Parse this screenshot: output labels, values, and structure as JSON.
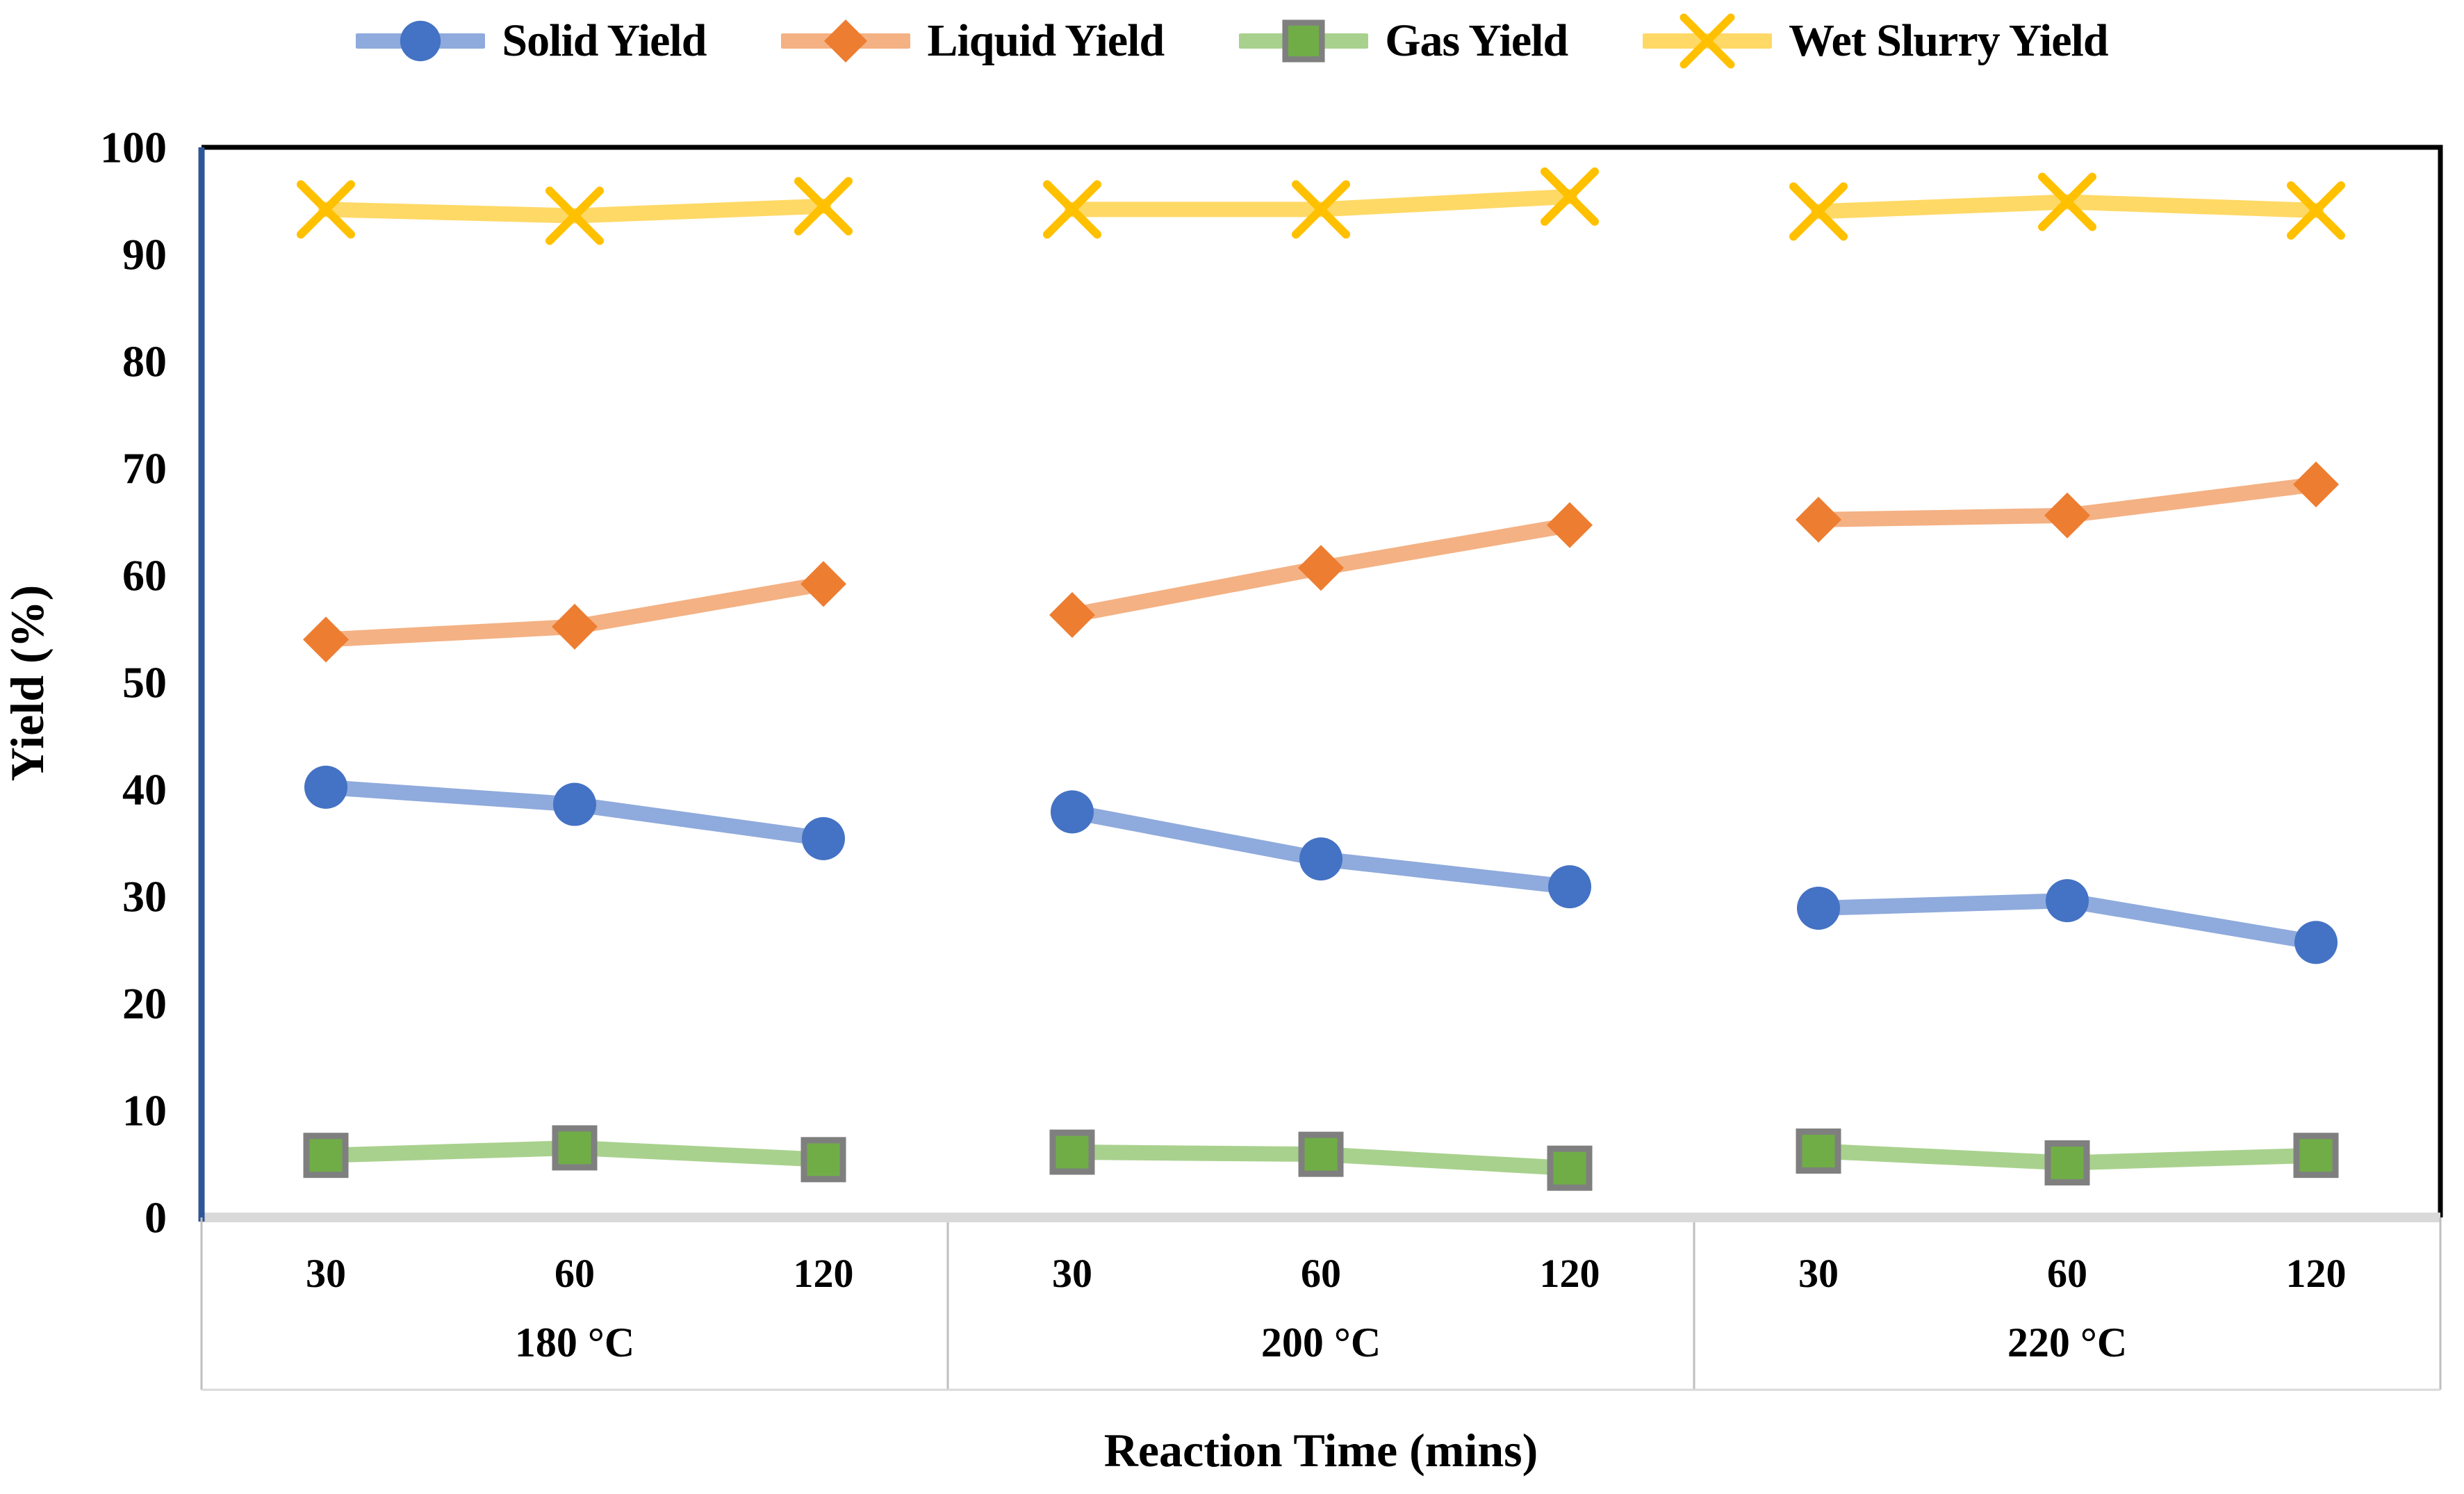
{
  "chart_data": {
    "type": "line",
    "title": "",
    "xlabel": "Reaction Time (mins)",
    "ylabel": "Yield (%)",
    "ylim": [
      0,
      100
    ],
    "ytick_step": 10,
    "grid": false,
    "legend_position": "top",
    "groups": [
      {
        "label": "180 °C",
        "ticks": [
          "30",
          "60",
          "120"
        ]
      },
      {
        "label": "200 °C",
        "ticks": [
          "30",
          "60",
          "120"
        ]
      },
      {
        "label": "220 °C",
        "ticks": [
          "30",
          "60",
          "120"
        ]
      }
    ],
    "series": [
      {
        "name": "Solid Yield",
        "marker": "circle",
        "marker_color": "#4472C4",
        "line_color": "#8FAADC",
        "values": [
          40.2,
          38.6,
          35.4,
          37.9,
          33.5,
          30.9,
          28.9,
          29.6,
          25.7
        ]
      },
      {
        "name": "Liquid Yield",
        "marker": "diamond",
        "marker_color": "#ED7D31",
        "line_color": "#F4B183",
        "values": [
          54.0,
          55.2,
          59.2,
          56.3,
          60.7,
          64.7,
          65.2,
          65.6,
          68.5
        ]
      },
      {
        "name": "Gas Yield",
        "marker": "square",
        "marker_color": "#70AD47",
        "marker_border": "#7F7F7F",
        "line_color": "#A9D18E",
        "values": [
          5.8,
          6.5,
          5.4,
          6.1,
          5.9,
          4.6,
          6.2,
          5.1,
          5.8
        ]
      },
      {
        "name": "Wet Slurry Yield",
        "marker": "x",
        "marker_color": "#FFC000",
        "line_color": "#FFD966",
        "values": [
          94.2,
          93.6,
          94.5,
          94.2,
          94.2,
          95.4,
          94.0,
          94.9,
          94.1
        ]
      }
    ]
  },
  "colors": {
    "y_axis_line": "#2F5597",
    "plot_border": "#000000",
    "x_axis_line": "#D9D9D9",
    "category_line": "#BFBFBF",
    "text": "#000000",
    "background": "#FFFFFF"
  }
}
